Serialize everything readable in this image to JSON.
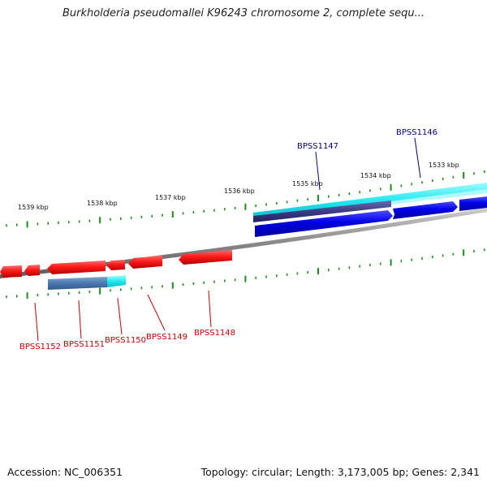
{
  "title": "Burkholderia pseudomallei K96243 chromosome 2, complete sequ...",
  "footer": {
    "accession": "Accession: NC_006351",
    "topology": "Topology: circular; Length: 3,173,005 bp; Genes: 2,341"
  },
  "scale_labels": [
    "1539 kbp",
    "1538 kbp",
    "1537 kbp",
    "1536 kbp",
    "1535 kbp",
    "1534 kbp",
    "1533 kbp"
  ],
  "forward_genes": [
    "BPSS1147",
    "BPSS1146"
  ],
  "reverse_genes": [
    "BPSS1152",
    "BPSS1151",
    "BPSS1150",
    "BPSS1149",
    "BPSS1148"
  ],
  "colors": {
    "forward_label": "#00008b",
    "reverse_label": "#cc0000",
    "forward_gene": "#0000e6",
    "reverse_gene": "#ff1a1a",
    "cds_forward": "#20e8f0",
    "cds_reverse": "#4a78b0",
    "tick": "#1e8c1e",
    "backbone": "#888888"
  }
}
